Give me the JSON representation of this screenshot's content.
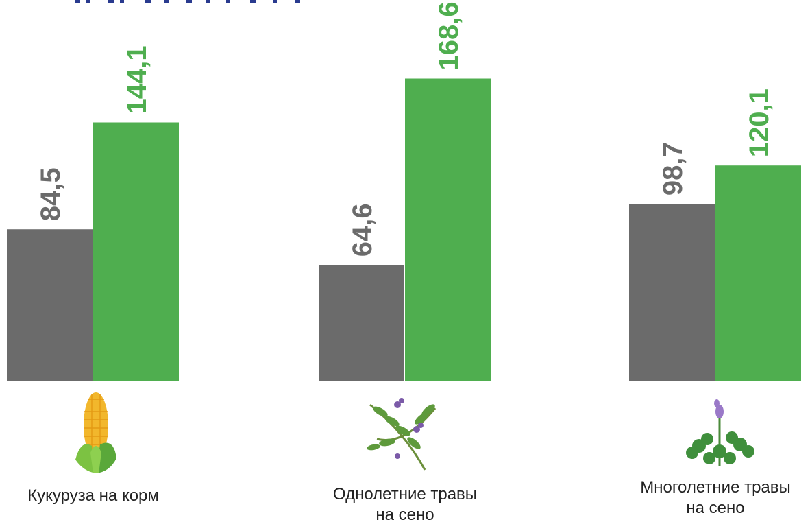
{
  "chart_data": {
    "type": "bar",
    "categories": [
      [
        "Кукуруза на корм"
      ],
      [
        "Однолетние травы",
        "на сено"
      ],
      [
        "Многолетние травы",
        "на сено"
      ]
    ],
    "series": [
      {
        "values": [
          84.5,
          64.6,
          98.7
        ]
      },
      {
        "values": [
          144.1,
          168.6,
          120.1
        ]
      }
    ],
    "value_labels": [
      [
        "84,5",
        "64,6",
        "98,7"
      ],
      [
        "144,1",
        "168,6",
        "120,1"
      ]
    ],
    "ylim": [
      0,
      190
    ],
    "grid": false,
    "legend": "none"
  },
  "colors": {
    "series_0": "#6b6b6b",
    "series_1": "#4fae4f",
    "title_fragment": "#2a3b8f"
  },
  "icons": [
    "corn-icon",
    "vetch-plant-icon",
    "alfalfa-plant-icon"
  ]
}
